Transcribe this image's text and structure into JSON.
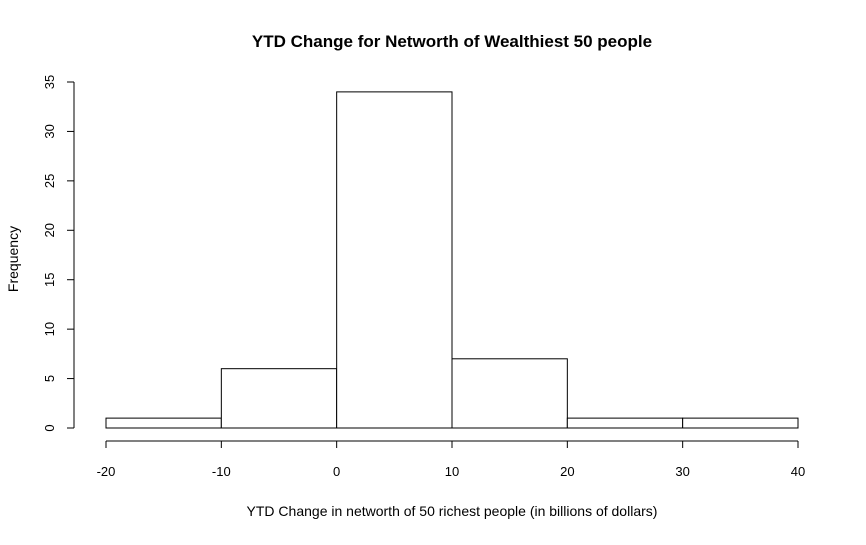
{
  "chart_data": {
    "type": "bar",
    "title": "YTD Change for Networth of Wealthiest 50 people",
    "xlabel": "YTD Change in networth of 50 richest people (in billions of dollars)",
    "ylabel": "Frequency",
    "bins": [
      {
        "from": -20,
        "to": -10,
        "count": 1
      },
      {
        "from": -10,
        "to": 0,
        "count": 6
      },
      {
        "from": 0,
        "to": 10,
        "count": 34
      },
      {
        "from": 10,
        "to": 20,
        "count": 7
      },
      {
        "from": 20,
        "to": 30,
        "count": 1
      },
      {
        "from": 30,
        "to": 40,
        "count": 1
      }
    ],
    "xlim": [
      -20,
      40
    ],
    "ylim": [
      0,
      35
    ],
    "xticks": [
      -20,
      -10,
      0,
      10,
      20,
      30,
      40
    ],
    "yticks": [
      0,
      5,
      10,
      15,
      20,
      25,
      30,
      35
    ],
    "grid": false,
    "bar_fill": "#ffffff",
    "bar_stroke": "#000000"
  }
}
